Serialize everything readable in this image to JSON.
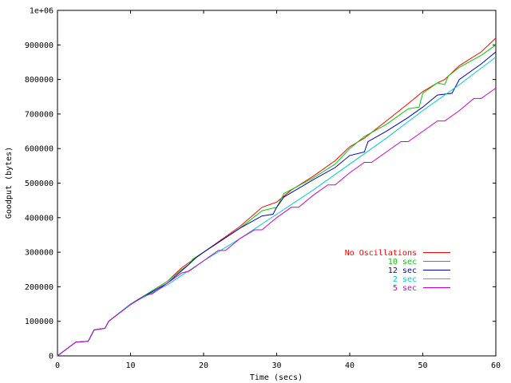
{
  "chart_data": {
    "type": "line",
    "xlabel": "Time (secs)",
    "ylabel": "Goodput (bytes)",
    "xlim": [
      0,
      60
    ],
    "ylim": [
      0,
      1000000
    ],
    "x_ticks": [
      0,
      10,
      20,
      30,
      40,
      50,
      60
    ],
    "x_tick_labels": [
      "0",
      "10",
      "20",
      "30",
      "40",
      "50",
      "60"
    ],
    "y_ticks": [
      0,
      100000,
      200000,
      300000,
      400000,
      500000,
      600000,
      700000,
      800000,
      900000,
      1000000
    ],
    "y_tick_labels": [
      "0",
      "100000",
      "200000",
      "300000",
      "400000",
      "500000",
      "600000",
      "700000",
      "800000",
      "900000",
      "1e+06"
    ],
    "grid": false,
    "legend_position": "middle-right",
    "series": [
      {
        "name": "No Oscillations",
        "color": "#ff0000",
        "points": [
          [
            0,
            0
          ],
          [
            2.5,
            40000
          ],
          [
            4.2,
            42000
          ],
          [
            5,
            75000
          ],
          [
            6.5,
            80000
          ],
          [
            7,
            100000
          ],
          [
            10,
            150000
          ],
          [
            15,
            215000
          ],
          [
            17,
            255000
          ],
          [
            18,
            270000
          ],
          [
            20,
            300000
          ],
          [
            25,
            375000
          ],
          [
            28,
            430000
          ],
          [
            30,
            445000
          ],
          [
            32,
            480000
          ],
          [
            35,
            520000
          ],
          [
            38,
            565000
          ],
          [
            40,
            605000
          ],
          [
            42,
            630000
          ],
          [
            45,
            680000
          ],
          [
            48,
            730000
          ],
          [
            50,
            765000
          ],
          [
            52,
            790000
          ],
          [
            53,
            800000
          ],
          [
            55,
            840000
          ],
          [
            58,
            880000
          ],
          [
            60,
            920000
          ]
        ]
      },
      {
        "name": "10 sec",
        "color": "#00cc00",
        "points": [
          [
            0,
            0
          ],
          [
            2.5,
            40000
          ],
          [
            4.2,
            42000
          ],
          [
            5,
            75000
          ],
          [
            6.5,
            80000
          ],
          [
            7,
            100000
          ],
          [
            10,
            150000
          ],
          [
            15,
            215000
          ],
          [
            17,
            250000
          ],
          [
            18,
            265000
          ],
          [
            18.5,
            280000
          ],
          [
            20,
            300000
          ],
          [
            25,
            370000
          ],
          [
            28,
            420000
          ],
          [
            30,
            430000
          ],
          [
            31,
            470000
          ],
          [
            35,
            515000
          ],
          [
            38,
            555000
          ],
          [
            40,
            600000
          ],
          [
            42,
            635000
          ],
          [
            45,
            670000
          ],
          [
            48,
            715000
          ],
          [
            49.5,
            720000
          ],
          [
            50,
            760000
          ],
          [
            52,
            790000
          ],
          [
            53,
            785000
          ],
          [
            53.5,
            810000
          ],
          [
            55,
            835000
          ],
          [
            58,
            870000
          ],
          [
            60,
            900000
          ]
        ]
      },
      {
        "name": "12 sec",
        "color": "#0000cc",
        "points": [
          [
            0,
            0
          ],
          [
            2.5,
            40000
          ],
          [
            4.2,
            42000
          ],
          [
            5,
            75000
          ],
          [
            6.5,
            80000
          ],
          [
            7,
            100000
          ],
          [
            10,
            150000
          ],
          [
            15,
            210000
          ],
          [
            18,
            265000
          ],
          [
            19,
            285000
          ],
          [
            20,
            300000
          ],
          [
            25,
            370000
          ],
          [
            28,
            405000
          ],
          [
            29.5,
            410000
          ],
          [
            30,
            430000
          ],
          [
            31,
            460000
          ],
          [
            35,
            510000
          ],
          [
            38,
            545000
          ],
          [
            40,
            580000
          ],
          [
            42,
            590000
          ],
          [
            42.5,
            620000
          ],
          [
            45,
            650000
          ],
          [
            48,
            690000
          ],
          [
            50,
            720000
          ],
          [
            52,
            755000
          ],
          [
            54,
            760000
          ],
          [
            55,
            800000
          ],
          [
            58,
            845000
          ],
          [
            60,
            880000
          ]
        ]
      },
      {
        "name": "2 sec",
        "color": "#00cccc",
        "points": [
          [
            0,
            0
          ],
          [
            2.5,
            40000
          ],
          [
            4.2,
            42000
          ],
          [
            5,
            75000
          ],
          [
            6.5,
            80000
          ],
          [
            7,
            100000
          ],
          [
            10,
            150000
          ],
          [
            15,
            205000
          ],
          [
            20,
            275000
          ],
          [
            25,
            340000
          ],
          [
            30,
            410000
          ],
          [
            35,
            480000
          ],
          [
            40,
            555000
          ],
          [
            45,
            630000
          ],
          [
            50,
            710000
          ],
          [
            55,
            785000
          ],
          [
            60,
            865000
          ]
        ]
      },
      {
        "name": "5 sec",
        "color": "#cc00cc",
        "points": [
          [
            0,
            0
          ],
          [
            2.5,
            40000
          ],
          [
            4.2,
            42000
          ],
          [
            5,
            75000
          ],
          [
            6.5,
            80000
          ],
          [
            7,
            100000
          ],
          [
            10,
            148000
          ],
          [
            12,
            175000
          ],
          [
            13,
            180000
          ],
          [
            15,
            210000
          ],
          [
            17,
            240000
          ],
          [
            18,
            245000
          ],
          [
            20,
            275000
          ],
          [
            22,
            305000
          ],
          [
            23,
            305000
          ],
          [
            25,
            340000
          ],
          [
            27,
            365000
          ],
          [
            28,
            365000
          ],
          [
            30,
            400000
          ],
          [
            32,
            430000
          ],
          [
            33,
            430000
          ],
          [
            35,
            465000
          ],
          [
            37,
            495000
          ],
          [
            38,
            495000
          ],
          [
            40,
            530000
          ],
          [
            42,
            560000
          ],
          [
            43,
            560000
          ],
          [
            45,
            590000
          ],
          [
            47,
            620000
          ],
          [
            48,
            620000
          ],
          [
            50,
            650000
          ],
          [
            52,
            680000
          ],
          [
            53,
            680000
          ],
          [
            55,
            710000
          ],
          [
            57,
            745000
          ],
          [
            58,
            745000
          ],
          [
            60,
            775000
          ]
        ]
      }
    ]
  }
}
